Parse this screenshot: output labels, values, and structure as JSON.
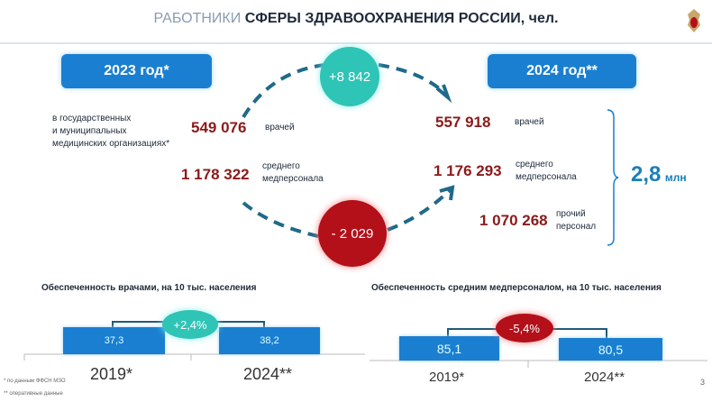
{
  "header": {
    "title_light": "РАБОТНИКИ",
    "title_bold": "СФЕРЫ ЗДРАВООХРАНЕНИЯ РОССИИ, чел.",
    "logo_icon": "ministry-emblem-icon"
  },
  "year_2023": {
    "label": "2023 год*",
    "note": [
      "в государственных",
      "и муниципальных",
      "медицинских организациях*"
    ],
    "doctors": "549 076",
    "doctors_label": "врачей",
    "nurses": "1 178 322",
    "nurses_label": [
      "среднего",
      "медперсонала"
    ]
  },
  "year_2024": {
    "label": "2024 год**",
    "doctors": "557 918",
    "doctors_label": "врачей",
    "nurses": "1 176 293",
    "nurses_label": [
      "среднего",
      "медперсонала"
    ],
    "other": "1 070 268",
    "other_label": [
      "прочий",
      "персонал"
    ],
    "total": "2,8",
    "total_unit": "млн"
  },
  "changes": {
    "doctors": "+8 842",
    "nurses": "- 2 029"
  },
  "colors": {
    "blue": "#1a7fd1",
    "teal": "#2ec4b6",
    "red": "#b3101a",
    "dark_red": "#8b1a1a"
  },
  "chart_data": [
    {
      "type": "bar",
      "title": "Обеспеченность врачами, на 10 тыс. населения",
      "categories": [
        "2019*",
        "2024**"
      ],
      "values": [
        37.3,
        38.2
      ],
      "value_labels": [
        "37,3",
        "38,2"
      ],
      "change": "+2,4%"
    },
    {
      "type": "bar",
      "title": "Обеспеченность средним медперсоналом, на 10 тыс. населения",
      "categories": [
        "2019*",
        "2024**"
      ],
      "values": [
        85.1,
        80.5
      ],
      "value_labels": [
        "85,1",
        "80,5"
      ],
      "change": "-5,4%"
    }
  ],
  "footnotes": [
    "* по данным ФФСН МЗО",
    "** оперативные данные"
  ],
  "page_number": "3"
}
